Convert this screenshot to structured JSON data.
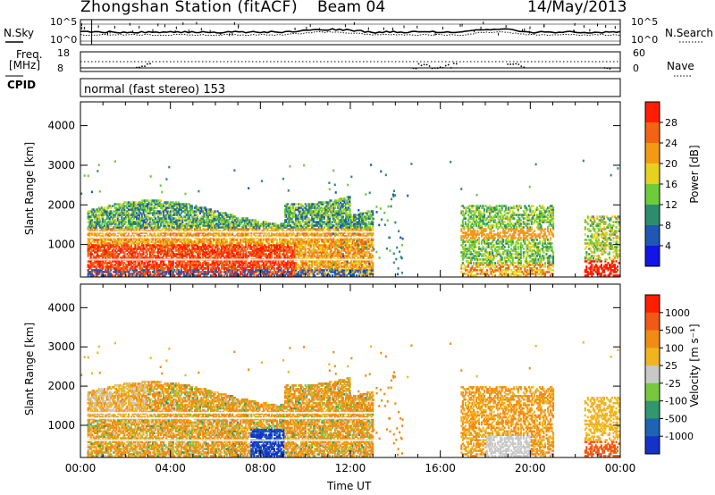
{
  "header": {
    "title": "Zhongshan Station (fitACF)",
    "beam": "Beam 04",
    "date": "14/May/2013"
  },
  "top_panels": {
    "nsky_label": "N.Sky",
    "nsky_ticks": [
      "10^5",
      "10^0"
    ],
    "nsearch_label": "N.Search",
    "nsearch_ticks": [
      "10^5",
      "10^0"
    ],
    "freq_label_1": "Freq.",
    "freq_label_2": "[MHz]",
    "freq_ticks": [
      "18",
      "8"
    ],
    "nave_label": "Nave",
    "nave_ticks": [
      "60",
      "0"
    ],
    "cpid_label": "CPID",
    "program": "normal (fast stereo) 153"
  },
  "chart_data": [
    {
      "type": "heatmap",
      "name": "power",
      "ylabel": "Slant Range [km]",
      "yticks": [
        "1000",
        "2000",
        "3000",
        "4000"
      ],
      "ylim": [
        180,
        4600
      ],
      "xlim": [
        0,
        24
      ],
      "colorbar_label": "Power [dB]",
      "colorbar_ticks": [
        "28",
        "24",
        "20",
        "16",
        "12",
        "8",
        "4"
      ],
      "colors": [
        "#1414e6",
        "#1e58b4",
        "#2e8c6e",
        "#6ccc3a",
        "#e6d21e",
        "#f29a14",
        "#f26414",
        "#ff1e00"
      ]
    },
    {
      "type": "heatmap",
      "name": "velocity",
      "ylabel": "Slant Range [km]",
      "yticks": [
        "1000",
        "2000",
        "3000",
        "4000"
      ],
      "ylim": [
        180,
        4600
      ],
      "xlim": [
        0,
        24
      ],
      "xlabel": "Time UT",
      "xticks": [
        "00:00",
        "04:00",
        "08:00",
        "12:00",
        "16:00",
        "20:00",
        "00:00"
      ],
      "colorbar_label": "Velocity [m s⁻¹]",
      "colorbar_ticks": [
        "1000",
        "500",
        "100",
        "25",
        "-25",
        "-100",
        "-500",
        "-1000"
      ],
      "colors": [
        "#1432c8",
        "#1e64b4",
        "#32966e",
        "#78c83c",
        "#c8c8c8",
        "#f0b41e",
        "#f08c14",
        "#f05a14",
        "#ff1e00"
      ]
    }
  ]
}
